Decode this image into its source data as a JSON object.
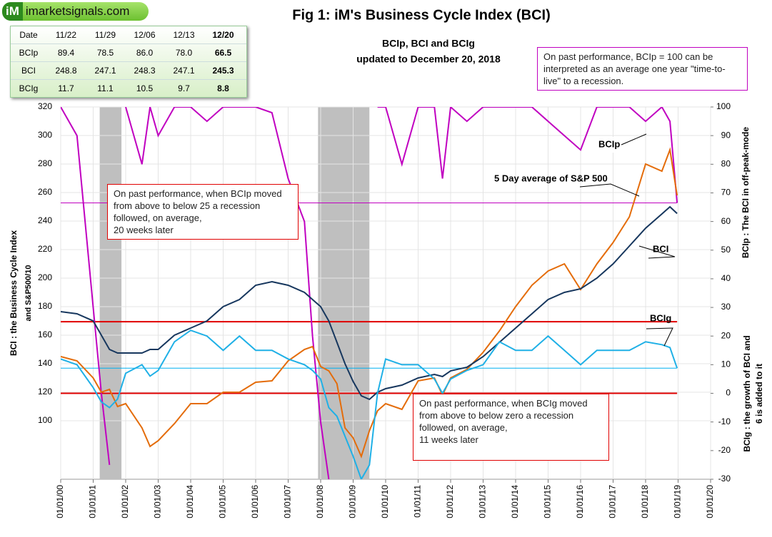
{
  "logo": {
    "mark": "iM",
    "text": "imarketsignals.com"
  },
  "table": {
    "header": [
      "Date",
      "11/22",
      "11/29",
      "12/06",
      "12/13",
      "12/20"
    ],
    "rows": [
      [
        "BCIp",
        "89.4",
        "78.5",
        "86.0",
        "78.0",
        "66.5"
      ],
      [
        "BCI",
        "248.8",
        "247.1",
        "248.3",
        "247.1",
        "245.3"
      ],
      [
        "BCIg",
        "11.7",
        "11.1",
        "10.5",
        "9.7",
        "8.8"
      ]
    ]
  },
  "chart_data": {
    "type": "line",
    "title": "Fig 1:  iM's Business Cycle Index (BCI)",
    "subtitle": [
      "BCIp, BCI and BCIg",
      "updated to December 20, 2018"
    ],
    "ylabel": [
      "BCI : the Business  Cycle  Index",
      "and   S&P500/10"
    ],
    "y2label_top": "BCIp :  The BCI in off-peak-mode",
    "y2label_bottom": [
      "BCIg :  the growth of BCI and",
      "6 is added to it"
    ],
    "notes": [
      {
        "lines": [
          "On past performance, BCIp = 100  can be",
          "interpreted as an average one year \"time-to-",
          "live\" to a recession."
        ],
        "color": "#c000c0"
      },
      {
        "lines": [
          "On past performance,  when BCIp moved",
          "from above to below 25 a recession",
          "followed, on average,",
          "20 weeks later"
        ],
        "color": "#e00000"
      },
      {
        "lines": [
          "On past performance,  when BCIg moved",
          "from above to below zero a recession",
          "followed, on average,",
          "11 weeks later"
        ],
        "color": "#e00000"
      }
    ],
    "series_labels": [
      "BCIp",
      "5 Day average of  S&P 500",
      "BCI",
      "BCIg"
    ],
    "xlim": [
      2000,
      2020
    ],
    "xticks": [
      {
        "value": 2000,
        "label": "01/01/00"
      },
      {
        "value": 2001,
        "label": "01/01/01"
      },
      {
        "value": 2002,
        "label": "01/01/02"
      },
      {
        "value": 2003,
        "label": "01/01/03"
      },
      {
        "value": 2004,
        "label": "01/01/04"
      },
      {
        "value": 2005,
        "label": "01/01/05"
      },
      {
        "value": 2006,
        "label": "01/01/06"
      },
      {
        "value": 2007,
        "label": "01/01/07"
      },
      {
        "value": 2008,
        "label": "01/01/08"
      },
      {
        "value": 2009,
        "label": "01/01/09"
      },
      {
        "value": 2010,
        "label": "01/01/10"
      },
      {
        "value": 2011,
        "label": "01/01/11"
      },
      {
        "value": 2012,
        "label": "01/01/12"
      },
      {
        "value": 2013,
        "label": "01/01/13"
      },
      {
        "value": 2014,
        "label": "01/01/14"
      },
      {
        "value": 2015,
        "label": "01/01/15"
      },
      {
        "value": 2016,
        "label": "01/01/16"
      },
      {
        "value": 2017,
        "label": "01/01/17"
      },
      {
        "value": 2018,
        "label": "01/01/18"
      },
      {
        "value": 2019,
        "label": "01/01/19"
      },
      {
        "value": 2020,
        "label": "01/01/20"
      }
    ],
    "ylim": [
      59,
      320
    ],
    "yticks": [
      100,
      120,
      140,
      160,
      180,
      200,
      220,
      240,
      260,
      280,
      300,
      320
    ],
    "y2lim": [
      -30,
      100
    ],
    "y2ticks": [
      -30,
      -20,
      -10,
      0,
      10,
      20,
      30,
      40,
      50,
      60,
      70,
      80,
      90,
      100
    ],
    "grid": true,
    "recessions": [
      [
        2001.2,
        2001.87
      ],
      [
        2007.92,
        2009.5
      ]
    ],
    "reference_lines": [
      {
        "value": 25,
        "axis": "y2",
        "color": "#e00000"
      },
      {
        "value": 0,
        "axis": "y2",
        "color": "#e00000"
      },
      {
        "value": 66.5,
        "axis": "y2",
        "color": "#c000c0"
      },
      {
        "value": 8.8,
        "axis": "y2",
        "color": "#00b0f0"
      }
    ],
    "x": [
      2000,
      2000.5,
      2001,
      2001.25,
      2001.5,
      2001.75,
      2002,
      2002.5,
      2002.75,
      2003,
      2003.5,
      2004,
      2004.5,
      2005,
      2005.5,
      2006,
      2006.5,
      2007,
      2007.5,
      2007.75,
      2008,
      2008.25,
      2008.5,
      2008.75,
      2009,
      2009.25,
      2009.5,
      2009.75,
      2010,
      2010.5,
      2011,
      2011.5,
      2011.75,
      2012,
      2012.5,
      2013,
      2013.5,
      2014,
      2014.5,
      2015,
      2015.5,
      2016,
      2016.5,
      2017,
      2017.5,
      2018,
      2018.5,
      2018.75,
      2018.97
    ],
    "series": [
      {
        "name": "BCIp",
        "color": "#c000c0",
        "axis": "y2",
        "values": [
          100,
          90,
          30,
          0,
          -25,
          null,
          100,
          80,
          100,
          90,
          100,
          100,
          95,
          100,
          100,
          100,
          98,
          75,
          60,
          20,
          -10,
          -30,
          null,
          null,
          null,
          null,
          null,
          100,
          100,
          80,
          100,
          100,
          75,
          100,
          95,
          100,
          100,
          100,
          100,
          95,
          90,
          85,
          100,
          100,
          100,
          95,
          100,
          95,
          66.5
        ]
      },
      {
        "name": "S&P 500",
        "color": "#e46c0a",
        "values": [
          145,
          142,
          130,
          120,
          122,
          110,
          112,
          95,
          82,
          86,
          98,
          112,
          112,
          120,
          120,
          127,
          128,
          142,
          150,
          152,
          138,
          135,
          126,
          95,
          88,
          75,
          93,
          107,
          112,
          108,
          128,
          130,
          118,
          130,
          136,
          148,
          163,
          180,
          195,
          205,
          210,
          192,
          210,
          225,
          243,
          280,
          275,
          290,
          258
        ]
      },
      {
        "name": "BCI",
        "color": "#17375e",
        "values": [
          176.5,
          175,
          170,
          160,
          150,
          147.5,
          147.5,
          147.5,
          150,
          150,
          160,
          165,
          170,
          180,
          185,
          195,
          197.5,
          195,
          190,
          185,
          180,
          170,
          155,
          140,
          127.5,
          117.5,
          115,
          120,
          122.5,
          125,
          130,
          132.5,
          131,
          135,
          137.5,
          145,
          155,
          165,
          175,
          185,
          190,
          192.5,
          200,
          210,
          222.5,
          235,
          245,
          250,
          245.3
        ]
      },
      {
        "name": "BCIg",
        "color": "#1fb0e6",
        "axis": "y2",
        "values": [
          12,
          10,
          2,
          -3,
          -5,
          -2,
          7,
          10,
          6,
          8,
          18,
          22,
          20,
          15,
          20,
          15,
          15,
          12,
          10,
          8,
          5,
          -5,
          -8,
          -15,
          -22,
          -30,
          -25,
          0,
          12,
          10,
          10,
          5,
          0,
          5,
          8,
          10,
          18,
          15,
          15,
          20,
          15,
          10,
          15,
          15,
          15,
          18,
          17,
          16,
          8.8
        ]
      }
    ]
  }
}
